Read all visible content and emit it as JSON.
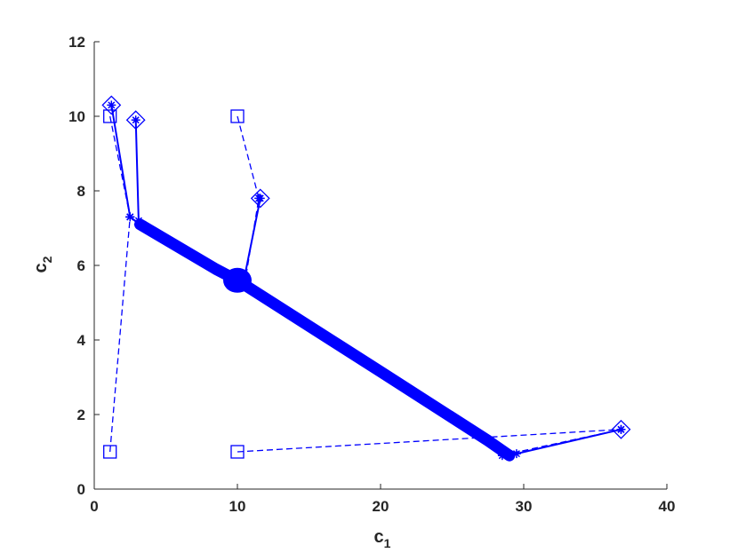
{
  "chart_data": {
    "type": "line",
    "xlabel": "c",
    "xlabel_sub": "1",
    "ylabel": "c",
    "ylabel_sub": "2",
    "xlim": [
      0,
      40
    ],
    "ylim": [
      0,
      12
    ],
    "xticks": [
      "0",
      "10",
      "20",
      "30",
      "40"
    ],
    "yticks": [
      "0",
      "2",
      "4",
      "6",
      "8",
      "10",
      "12"
    ],
    "grid": false,
    "legend": "none",
    "color": "#0000ff",
    "series": [
      {
        "style": "dashed",
        "start_marker": "square",
        "values": [
          [
            1.1,
            1.0
          ],
          [
            2.5,
            7.3
          ],
          [
            3.1,
            7.1
          ]
        ]
      },
      {
        "style": "dashed",
        "start_marker": "square",
        "values": [
          [
            1.1,
            10.0
          ],
          [
            2.5,
            7.3
          ],
          [
            3.1,
            7.1
          ]
        ]
      },
      {
        "style": "dashed",
        "start_marker": "square",
        "values": [
          [
            10.0,
            10.0
          ],
          [
            11.5,
            7.8
          ],
          [
            10.5,
            5.5
          ]
        ]
      },
      {
        "style": "dashed",
        "start_marker": "square",
        "values": [
          [
            10.0,
            1.0
          ],
          [
            36.8,
            1.6
          ],
          [
            29.0,
            0.95
          ]
        ]
      },
      {
        "style": "solid",
        "start_marker": "diamond",
        "values": [
          [
            1.2,
            10.3
          ],
          [
            2.5,
            7.3
          ],
          [
            3.2,
            7.1
          ]
        ]
      },
      {
        "style": "solid",
        "start_marker": "diamond",
        "values": [
          [
            2.9,
            9.9
          ],
          [
            3.1,
            7.2
          ],
          [
            3.4,
            7.1
          ]
        ]
      },
      {
        "style": "solid",
        "start_marker": "diamond",
        "values": [
          [
            11.6,
            7.8
          ],
          [
            10.4,
            5.5
          ],
          [
            10.1,
            5.6
          ]
        ]
      },
      {
        "style": "solid",
        "start_marker": "diamond",
        "values": [
          [
            36.8,
            1.6
          ],
          [
            29.5,
            0.95
          ],
          [
            28.5,
            0.9
          ]
        ]
      },
      {
        "style": "thick",
        "start_marker": "none",
        "values": [
          [
            3.2,
            7.1
          ],
          [
            8.5,
            5.9
          ],
          [
            10.0,
            5.6
          ],
          [
            20.0,
            3.15
          ],
          [
            27.5,
            1.3
          ],
          [
            29.0,
            0.9
          ]
        ]
      }
    ]
  }
}
